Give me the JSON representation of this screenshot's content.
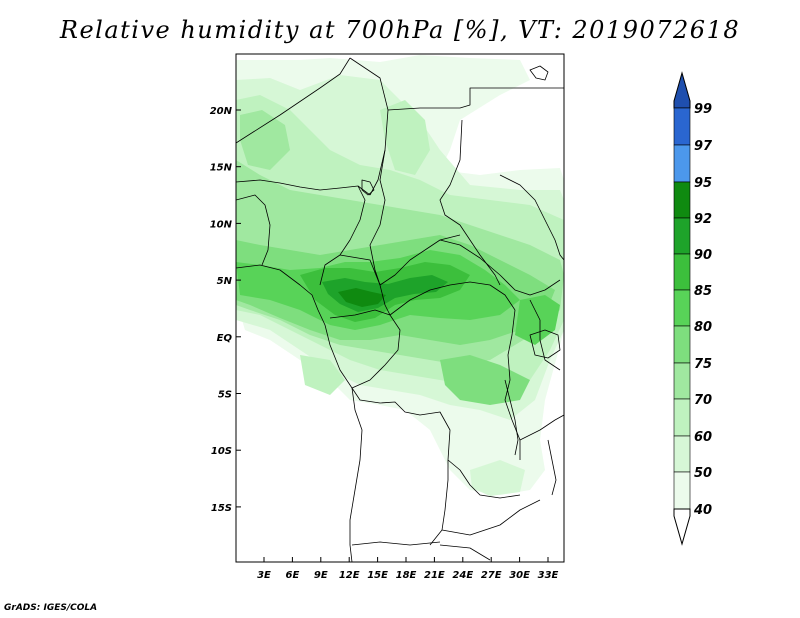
{
  "title": "Relative humidity at 700hPa [%], VT: 2019072618",
  "credit": "GrADS: IGES/COLA",
  "map": {
    "lat_labels": [
      "20N",
      "15N",
      "10N",
      "5N",
      "EQ",
      "5S",
      "10S",
      "15S"
    ],
    "lon_labels": [
      "3E",
      "6E",
      "9E",
      "12E",
      "15E",
      "18E",
      "21E",
      "24E",
      "27E",
      "30E",
      "33E"
    ]
  },
  "colorbar": {
    "labels": [
      "99",
      "97",
      "95",
      "92",
      "90",
      "85",
      "80",
      "75",
      "70",
      "60",
      "50",
      "40"
    ],
    "colors": {
      "b99plus": "#1f4fae",
      "b97_99": "#2a66d0",
      "b95_97": "#4c98ec",
      "b92_95": "#0f8a10",
      "b90_92": "#1ea32a",
      "b85_90": "#3cbf3c",
      "b80_85": "#58d358",
      "b75_80": "#7ede7e",
      "b70_75": "#a0e8a0",
      "b60_70": "#bff2bf",
      "b50_60": "#d6f7d6",
      "b40_50": "#ecfbec",
      "below40": "#ffffff"
    }
  }
}
